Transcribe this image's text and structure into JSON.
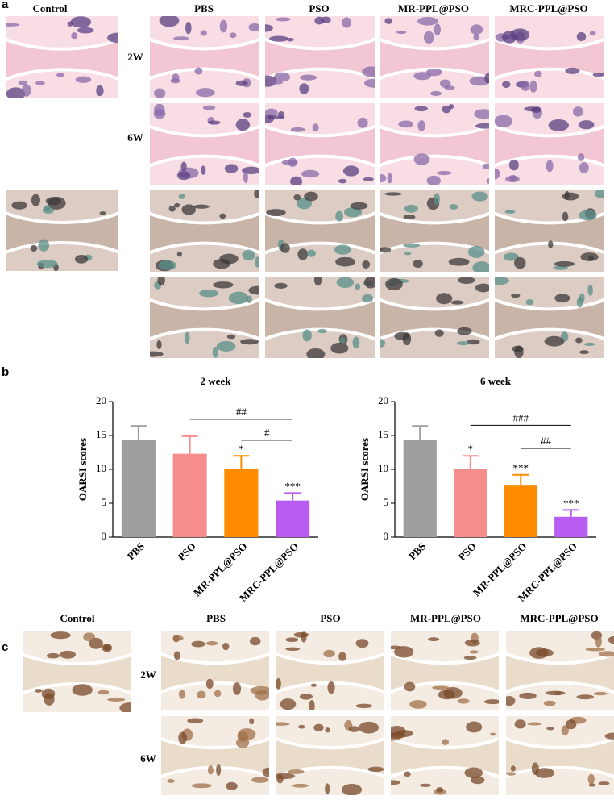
{
  "panel_a": {
    "label": "a",
    "control": "Control",
    "columns": [
      "PBS",
      "PSO",
      "MR-PPL@PSO",
      "MRC-PPL@PSO"
    ],
    "rows": [
      "2W",
      "6W"
    ]
  },
  "panel_b": {
    "label": "b"
  },
  "chart_data": [
    {
      "type": "bar",
      "title": "2 week",
      "ylabel": "OARSI scores",
      "categories": [
        "PBS",
        "PSO",
        "MR-PPL@PSO",
        "MRC-PPL@PSO"
      ],
      "values": [
        14.3,
        12.3,
        10.0,
        5.4
      ],
      "errors": [
        2.1,
        2.6,
        2.0,
        1.1
      ],
      "colors": [
        "#9e9e9e",
        "#f68d8d",
        "#ff8c00",
        "#b85cf2"
      ],
      "significance": [
        null,
        null,
        "*",
        "***"
      ],
      "brackets": [
        {
          "label": "##",
          "from": "PSO",
          "to": "MRC-PPL@PSO",
          "y": 17.4
        },
        {
          "label": "#",
          "from": "MR-PPL@PSO",
          "to": "MRC-PPL@PSO",
          "y": 14.3
        }
      ],
      "ylim": [
        0,
        20
      ],
      "yticks": [
        0,
        5,
        10,
        15,
        20
      ]
    },
    {
      "type": "bar",
      "title": "6 week",
      "ylabel": "OARSI scores",
      "categories": [
        "PBS",
        "PSO",
        "MR-PPL@PSO",
        "MRC-PPL@PSO"
      ],
      "values": [
        14.3,
        10.0,
        7.6,
        3.0
      ],
      "errors": [
        2.1,
        2.0,
        1.6,
        1.0
      ],
      "colors": [
        "#9e9e9e",
        "#f68d8d",
        "#ff8c00",
        "#b85cf2"
      ],
      "significance": [
        null,
        "*",
        "***",
        "***"
      ],
      "brackets": [
        {
          "label": "###",
          "from": "PSO",
          "to": "MRC-PPL@PSO",
          "y": 16.5
        },
        {
          "label": "##",
          "from": "MR-PPL@PSO",
          "to": "MRC-PPL@PSO",
          "y": 13.1
        }
      ],
      "ylim": [
        0,
        20
      ],
      "yticks": [
        0,
        5,
        10,
        15,
        20
      ]
    }
  ],
  "panel_c": {
    "label": "c",
    "control": "Control",
    "columns": [
      "PBS",
      "PSO",
      "MR-PPL@PSO",
      "MRC-PPL@PSO"
    ],
    "rows": [
      "2W",
      "6W"
    ]
  }
}
